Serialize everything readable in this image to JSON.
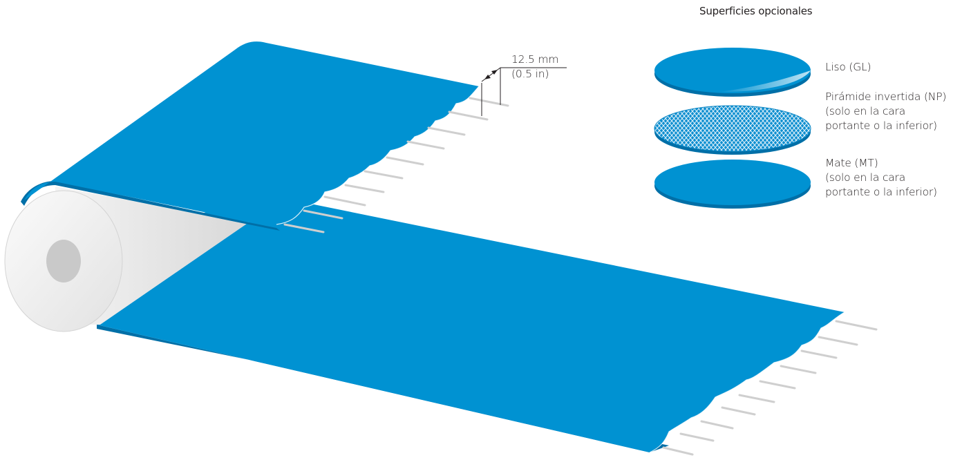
{
  "panel": {
    "title": "Superficies opcionales"
  },
  "dimension": {
    "metric": "12.5 mm",
    "imperial": "(0.5 in)"
  },
  "surfaces": [
    {
      "lines": [
        "Liso (GL)"
      ]
    },
    {
      "lines": [
        "Pirámide invertida (NP)",
        "(solo en la cara",
        "portante o la inferior)"
      ]
    },
    {
      "lines": [
        "Mate (MT)",
        "(solo en la cara",
        "portante o la inferior)"
      ]
    }
  ],
  "colors": {
    "belt": "#0092d2",
    "belt_edge": "#006fa7",
    "roll": "#e6e6e6",
    "rod": "#cfcfcf"
  }
}
